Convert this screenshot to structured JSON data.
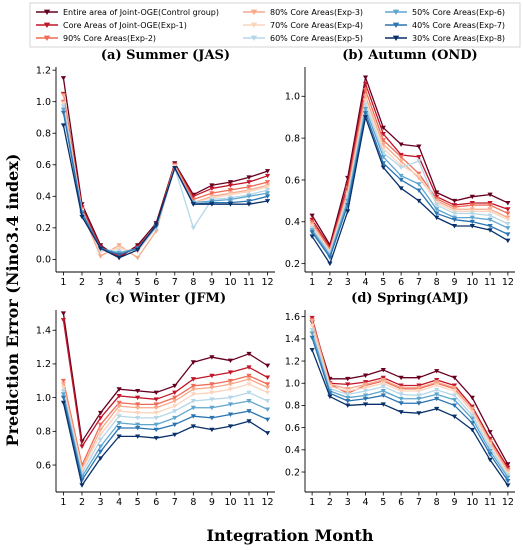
{
  "figure": {
    "xlabel": "Integration Month",
    "ylabel": "Prediction Error (Nino3.4 index)"
  },
  "legend": [
    {
      "name": "Entire area of Joint-OGE(Control group)",
      "color": "#67001f"
    },
    {
      "name": "Core Areas of Joint-OGE(Exp-1)",
      "color": "#c0152a"
    },
    {
      "name": "90% Core Areas(Exp-2)",
      "color": "#ef6b57"
    },
    {
      "name": "80% Core Areas(Exp-3)",
      "color": "#f7a98a"
    },
    {
      "name": "70% Core Areas(Exp-4)",
      "color": "#fbd4bd"
    },
    {
      "name": "60% Core Areas(Exp-5)",
      "color": "#b5d7e9"
    },
    {
      "name": "50% Core Areas(Exp-6)",
      "color": "#5fa6cf"
    },
    {
      "name": "40% Core Areas(Exp-7)",
      "color": "#2a74b1"
    },
    {
      "name": "30% Core Areas(Exp-8)",
      "color": "#08306b"
    }
  ],
  "chart_data": [
    {
      "type": "line",
      "title": "(a) Summer (JAS)",
      "x": [
        1,
        2,
        3,
        4,
        5,
        6,
        7,
        8,
        9,
        10,
        11,
        12
      ],
      "ylim": [
        -0.08,
        1.22
      ],
      "yticks": [
        0.0,
        0.2,
        0.4,
        0.6,
        0.8,
        1.0,
        1.2
      ],
      "series": [
        {
          "name": "Entire area of Joint-OGE(Control group)",
          "values": [
            1.15,
            0.35,
            0.09,
            0.01,
            0.09,
            0.23,
            0.61,
            0.41,
            0.47,
            0.49,
            0.52,
            0.56
          ]
        },
        {
          "name": "Core Areas of Joint-OGE(Exp-1)",
          "values": [
            1.05,
            0.33,
            0.08,
            0.02,
            0.08,
            0.21,
            0.6,
            0.4,
            0.45,
            0.47,
            0.49,
            0.53
          ]
        },
        {
          "name": "90% Core Areas(Exp-2)",
          "values": [
            1.0,
            0.32,
            0.06,
            0.04,
            0.07,
            0.21,
            0.6,
            0.38,
            0.42,
            0.44,
            0.46,
            0.49
          ]
        },
        {
          "name": "80% Core Areas(Exp-3)",
          "values": [
            1.04,
            0.3,
            0.02,
            0.09,
            0.01,
            0.18,
            0.59,
            0.36,
            0.4,
            0.42,
            0.44,
            0.47
          ]
        },
        {
          "name": "70% Core Areas(Exp-4)",
          "values": [
            0.99,
            0.31,
            0.05,
            0.07,
            0.05,
            0.2,
            0.59,
            0.36,
            0.39,
            0.41,
            0.43,
            0.46
          ]
        },
        {
          "name": "60% Core Areas(Exp-5)",
          "values": [
            0.97,
            0.3,
            0.06,
            0.05,
            0.06,
            0.2,
            0.58,
            0.2,
            0.38,
            0.39,
            0.41,
            0.44
          ]
        },
        {
          "name": "50% Core Areas(Exp-6)",
          "values": [
            0.95,
            0.3,
            0.07,
            0.04,
            0.07,
            0.21,
            0.58,
            0.36,
            0.37,
            0.38,
            0.4,
            0.42
          ]
        },
        {
          "name": "40% Core Areas(Exp-7)",
          "values": [
            0.93,
            0.29,
            0.07,
            0.03,
            0.07,
            0.21,
            0.58,
            0.35,
            0.36,
            0.36,
            0.37,
            0.4
          ]
        },
        {
          "name": "30% Core Areas(Exp-8)",
          "values": [
            0.85,
            0.27,
            0.07,
            0.01,
            0.06,
            0.22,
            0.58,
            0.35,
            0.35,
            0.35,
            0.35,
            0.37
          ]
        }
      ]
    },
    {
      "type": "line",
      "title": "(b) Autumn (OND)",
      "x": [
        1,
        2,
        3,
        4,
        5,
        6,
        7,
        8,
        9,
        10,
        11,
        12
      ],
      "ylim": [
        0.16,
        1.14
      ],
      "yticks": [
        0.2,
        0.4,
        0.6,
        0.8,
        1.0
      ],
      "series": [
        {
          "name": "Entire area of Joint-OGE(Control group)",
          "values": [
            0.43,
            0.29,
            0.61,
            1.09,
            0.85,
            0.77,
            0.76,
            0.54,
            0.5,
            0.52,
            0.53,
            0.49
          ]
        },
        {
          "name": "Core Areas of Joint-OGE(Exp-1)",
          "values": [
            0.41,
            0.28,
            0.58,
            1.06,
            0.82,
            0.72,
            0.71,
            0.52,
            0.48,
            0.49,
            0.49,
            0.46
          ]
        },
        {
          "name": "90% Core Areas(Exp-2)",
          "values": [
            0.4,
            0.27,
            0.56,
            1.03,
            0.79,
            0.71,
            0.63,
            0.51,
            0.47,
            0.48,
            0.48,
            0.44
          ]
        },
        {
          "name": "80% Core Areas(Exp-3)",
          "values": [
            0.39,
            0.26,
            0.54,
            1.0,
            0.77,
            0.69,
            0.61,
            0.5,
            0.46,
            0.46,
            0.46,
            0.42
          ]
        },
        {
          "name": "70% Core Areas(Exp-4)",
          "values": [
            0.38,
            0.26,
            0.53,
            0.98,
            0.75,
            0.67,
            0.62,
            0.49,
            0.45,
            0.45,
            0.45,
            0.41
          ]
        },
        {
          "name": "60% Core Areas(Exp-5)",
          "values": [
            0.37,
            0.25,
            0.52,
            0.96,
            0.73,
            0.66,
            0.69,
            0.48,
            0.44,
            0.44,
            0.43,
            0.39
          ]
        },
        {
          "name": "50% Core Areas(Exp-6)",
          "values": [
            0.36,
            0.24,
            0.5,
            0.94,
            0.71,
            0.62,
            0.58,
            0.46,
            0.42,
            0.42,
            0.41,
            0.37
          ]
        },
        {
          "name": "40% Core Areas(Exp-7)",
          "values": [
            0.35,
            0.23,
            0.48,
            0.92,
            0.68,
            0.6,
            0.55,
            0.44,
            0.41,
            0.4,
            0.38,
            0.34
          ]
        },
        {
          "name": "30% Core Areas(Exp-8)",
          "values": [
            0.33,
            0.2,
            0.45,
            0.9,
            0.66,
            0.56,
            0.5,
            0.42,
            0.38,
            0.38,
            0.36,
            0.31
          ]
        }
      ]
    },
    {
      "type": "line",
      "title": "(c) Winter (JFM)",
      "x": [
        1,
        2,
        3,
        4,
        5,
        6,
        7,
        8,
        9,
        10,
        11,
        12
      ],
      "ylim": [
        0.44,
        1.52
      ],
      "yticks": [
        0.6,
        0.8,
        1.0,
        1.2,
        1.4
      ],
      "series": [
        {
          "name": "Entire area of Joint-OGE(Control group)",
          "values": [
            1.5,
            0.74,
            0.91,
            1.05,
            1.04,
            1.03,
            1.07,
            1.21,
            1.24,
            1.22,
            1.26,
            1.19
          ]
        },
        {
          "name": "Core Areas of Joint-OGE(Exp-1)",
          "values": [
            1.46,
            0.71,
            0.88,
            1.01,
            1.0,
            0.99,
            1.03,
            1.11,
            1.13,
            1.15,
            1.18,
            1.12
          ]
        },
        {
          "name": "90% Core Areas(Exp-2)",
          "values": [
            1.1,
            0.6,
            0.84,
            0.97,
            0.96,
            0.96,
            1.0,
            1.07,
            1.08,
            1.1,
            1.13,
            1.08
          ]
        },
        {
          "name": "80% Core Areas(Exp-3)",
          "values": [
            1.08,
            0.58,
            0.81,
            0.95,
            0.94,
            0.94,
            0.98,
            1.05,
            1.06,
            1.08,
            1.11,
            1.06
          ]
        },
        {
          "name": "70% Core Areas(Exp-4)",
          "values": [
            1.06,
            0.57,
            0.78,
            0.92,
            0.91,
            0.91,
            0.95,
            1.02,
            1.03,
            1.05,
            1.08,
            1.03
          ]
        },
        {
          "name": "60% Core Areas(Exp-5)",
          "values": [
            1.04,
            0.55,
            0.75,
            0.89,
            0.88,
            0.88,
            0.92,
            0.98,
            0.99,
            1.0,
            1.03,
            0.98
          ]
        },
        {
          "name": "50% Core Areas(Exp-6)",
          "values": [
            1.02,
            0.53,
            0.71,
            0.85,
            0.84,
            0.84,
            0.88,
            0.94,
            0.94,
            0.96,
            0.98,
            0.93
          ]
        },
        {
          "name": "40% Core Areas(Exp-7)",
          "values": [
            1.0,
            0.51,
            0.68,
            0.82,
            0.82,
            0.81,
            0.84,
            0.89,
            0.88,
            0.9,
            0.92,
            0.87
          ]
        },
        {
          "name": "30% Core Areas(Exp-8)",
          "values": [
            0.97,
            0.48,
            0.64,
            0.77,
            0.77,
            0.76,
            0.78,
            0.83,
            0.81,
            0.83,
            0.86,
            0.79
          ]
        }
      ]
    },
    {
      "type": "line",
      "title": "(d) Spring(AMJ)",
      "x": [
        1,
        2,
        3,
        4,
        5,
        6,
        7,
        8,
        9,
        10,
        11,
        12
      ],
      "ylim": [
        0.02,
        1.66
      ],
      "yticks": [
        0.2,
        0.4,
        0.6,
        0.8,
        1.0,
        1.2,
        1.4,
        1.6
      ],
      "series": [
        {
          "name": "Entire area of Joint-OGE(Control group)",
          "values": [
            1.55,
            1.04,
            1.04,
            1.07,
            1.12,
            1.05,
            1.05,
            1.11,
            1.05,
            0.87,
            0.56,
            0.27
          ]
        },
        {
          "name": "Core Areas of Joint-OGE(Exp-1)",
          "values": [
            1.59,
            1.0,
            0.99,
            1.01,
            1.05,
            0.98,
            0.98,
            1.03,
            0.98,
            0.79,
            0.5,
            0.24
          ]
        },
        {
          "name": "90% Core Areas(Exp-2)",
          "values": [
            1.57,
            0.99,
            0.91,
            0.98,
            1.02,
            0.95,
            0.95,
            1.0,
            0.95,
            0.77,
            0.48,
            0.22
          ]
        },
        {
          "name": "80% Core Areas(Exp-3)",
          "values": [
            1.56,
            0.99,
            0.95,
            0.99,
            1.03,
            0.96,
            0.96,
            1.01,
            0.96,
            0.77,
            0.47,
            0.21
          ]
        },
        {
          "name": "70% Core Areas(Exp-4)",
          "values": [
            1.52,
            0.97,
            0.93,
            0.96,
            1.0,
            0.93,
            0.93,
            0.98,
            0.93,
            0.74,
            0.45,
            0.19
          ]
        },
        {
          "name": "60% Core Areas(Exp-5)",
          "values": [
            1.48,
            0.95,
            0.9,
            0.93,
            0.97,
            0.9,
            0.89,
            0.94,
            0.89,
            0.71,
            0.42,
            0.17
          ]
        },
        {
          "name": "50% Core Areas(Exp-6)",
          "values": [
            1.45,
            0.93,
            0.87,
            0.89,
            0.93,
            0.86,
            0.86,
            0.9,
            0.85,
            0.68,
            0.39,
            0.15
          ]
        },
        {
          "name": "40% Core Areas(Exp-7)",
          "values": [
            1.41,
            0.91,
            0.84,
            0.86,
            0.89,
            0.82,
            0.82,
            0.86,
            0.8,
            0.64,
            0.36,
            0.12
          ]
        },
        {
          "name": "30% Core Areas(Exp-8)",
          "values": [
            1.3,
            0.88,
            0.8,
            0.81,
            0.81,
            0.74,
            0.73,
            0.77,
            0.7,
            0.58,
            0.31,
            0.08
          ]
        }
      ]
    }
  ]
}
